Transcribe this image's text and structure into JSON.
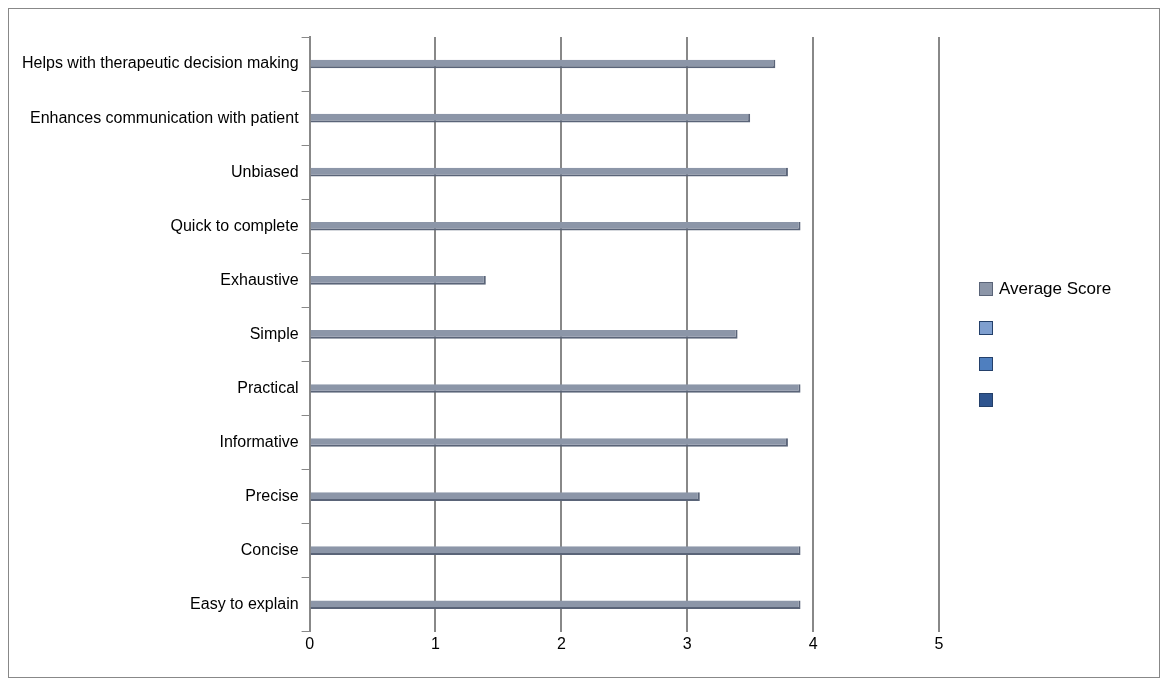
{
  "chart_data": {
    "type": "bar",
    "orientation": "horizontal",
    "categories": [
      "Helps with therapeutic decision making",
      "Enhances communication with patient",
      "Unbiased",
      "Quick to complete",
      "Exhaustive",
      "Simple",
      "Practical",
      "Informative",
      "Precise",
      "Concise",
      "Easy to explain"
    ],
    "series": [
      {
        "name": "Average Score",
        "color": "#8c96a8",
        "values": [
          3.7,
          3.5,
          3.8,
          3.9,
          1.4,
          3.4,
          3.9,
          3.8,
          3.1,
          3.9,
          3.9
        ]
      }
    ],
    "xlim": [
      0,
      5
    ],
    "xticks": [
      0,
      1,
      2,
      3,
      4,
      5
    ],
    "grid": "x",
    "legend": "right"
  }
}
